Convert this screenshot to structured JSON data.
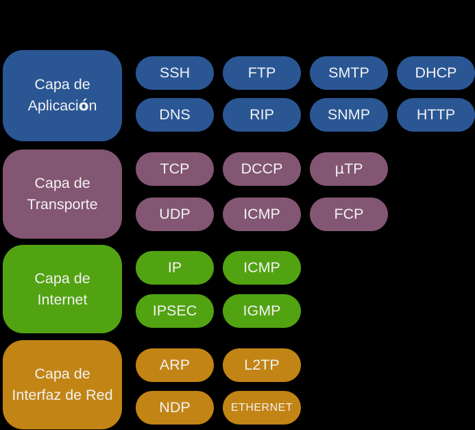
{
  "background_color": "#000000",
  "text_color": "#f2f2f2",
  "layers": [
    {
      "id": "aplicacion",
      "color": "#2a5694",
      "label_line1": "Capa de",
      "label_line2": "Aplicación",
      "protocol_rows": [
        [
          "SSH",
          "FTP",
          "SMTP",
          "DHCP"
        ],
        [
          "DNS",
          "RIP",
          "SNMP",
          "HTTP"
        ]
      ]
    },
    {
      "id": "transporte",
      "color": "#835673",
      "label_line1": "Capa de",
      "label_line2": "Transporte",
      "protocol_rows": [
        [
          "TCP",
          "DCCP",
          "µTP"
        ],
        [
          "UDP",
          "ICMP",
          "FCP"
        ]
      ]
    },
    {
      "id": "internet",
      "color": "#52a312",
      "label_line1": "Capa de",
      "label_line2": "Internet",
      "protocol_rows": [
        [
          "IP",
          "ICMP"
        ],
        [
          "IPSEC",
          "IGMP"
        ]
      ]
    },
    {
      "id": "interfaz-de-red",
      "color": "#c28414",
      "label_line1": "Capa de",
      "label_line2": "Interfaz de Red",
      "protocol_rows": [
        [
          "ARP",
          "L2TP"
        ],
        [
          "NDP",
          "ETHERNET"
        ]
      ]
    }
  ]
}
